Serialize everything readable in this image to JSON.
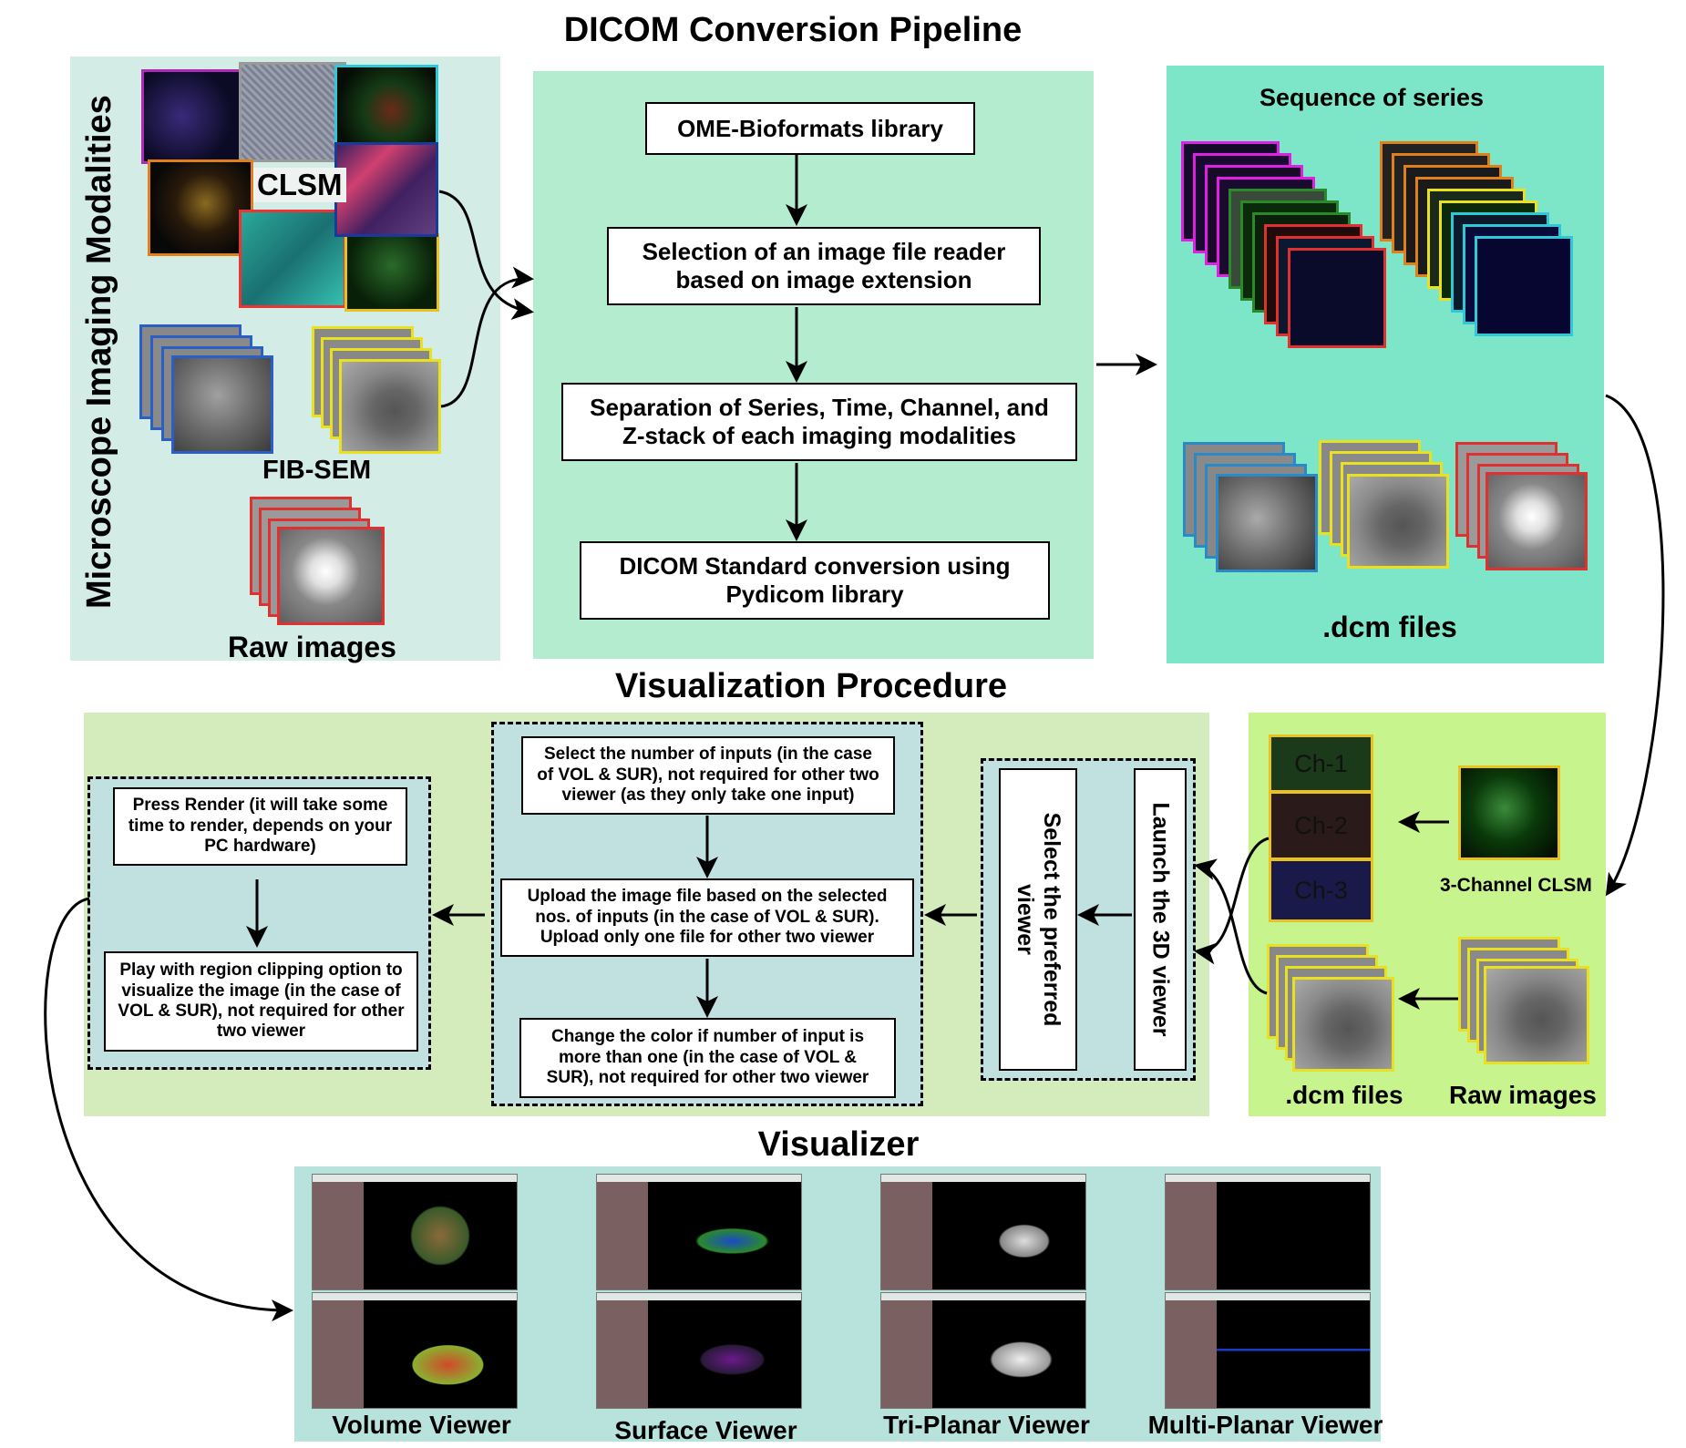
{
  "headings": {
    "dicom": "DICOM Conversion Pipeline",
    "visualization": "Visualization Procedure",
    "visualizer": "Visualizer"
  },
  "modalities": {
    "vertical_title": "Microscope Imaging Modalities",
    "clsm": "CLSM",
    "fibsem": "FIB-SEM",
    "raw": "Raw images"
  },
  "pipeline": {
    "step1": "OME-Bioformats library",
    "step2": "Selection of an image file reader based on image extension",
    "step3": "Separation of Series, Time, Channel, and Z-stack of each imaging modalities",
    "step4": "DICOM Standard conversion using Pydicom library"
  },
  "series": {
    "title": "Sequence of series",
    "dcm": ".dcm files"
  },
  "channels": {
    "ch1": "Ch-1",
    "ch2": "Ch-2",
    "ch3": "Ch-3",
    "clsm3": "3-Channel CLSM",
    "dcm": ".dcm files",
    "raw": "Raw images"
  },
  "viewer_select": {
    "launch": "Launch the 3D viewer",
    "select": "Select the preferred viewer"
  },
  "inputs": {
    "step1": "Select the number of inputs (in the case of VOL & SUR), not required for other two viewer (as they only take one input)",
    "step2": "Upload the image file based on the selected nos. of inputs (in the case of VOL & SUR). Upload only one file for other two viewer",
    "step3": "Change the color if number of input is more than one (in the case of VOL & SUR), not required for other two viewer"
  },
  "render": {
    "step1": "Press Render (it will take some time to render, depends on your PC hardware)",
    "step2": "Play with region clipping option to visualize the image (in the case of VOL & SUR), not required for other two viewer"
  },
  "viewers": {
    "volume": "Volume Viewer",
    "surface": "Surface Viewer",
    "triplanar": "Tri-Planar Viewer",
    "multiplanar": "Multi-Planar Viewer"
  },
  "colors": {
    "modalities_bg": "#d3ece6",
    "pipeline_bg": "#b4ecd0",
    "series_bg": "#7ee6c8",
    "vis_bg": "#d4ebbb",
    "channels_bg": "#c8f48e",
    "inner_bg": "#c1e0e0",
    "visualizer_bg": "#b8e2dc"
  }
}
